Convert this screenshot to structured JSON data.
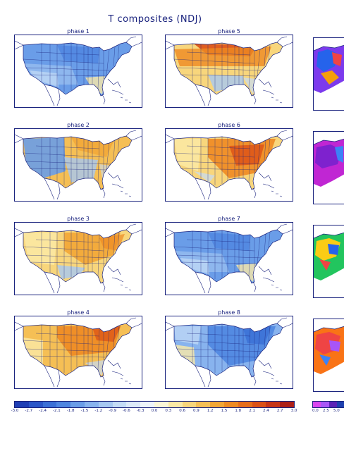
{
  "title": "T composites (NDJ)",
  "panels": [
    {
      "label": "phase 1",
      "pattern": "cold-north"
    },
    {
      "label": "phase 2",
      "pattern": "cold-west"
    },
    {
      "label": "phase 3",
      "pattern": "warm-east"
    },
    {
      "label": "phase 4",
      "pattern": "warm-all"
    },
    {
      "label": "phase 5",
      "pattern": "warm-north"
    },
    {
      "label": "phase 6",
      "pattern": "warm-east-strong"
    },
    {
      "label": "phase 7",
      "pattern": "cold-north"
    },
    {
      "label": "phase 8",
      "pattern": "cold-east"
    }
  ],
  "colorbar": {
    "ticks": [
      "-3.0",
      "-2.7",
      "-2.4",
      "-2.1",
      "-1.8",
      "-1.5",
      "-1.2",
      "-0.9",
      "-0.6",
      "-0.3",
      "0.0",
      "0.3",
      "0.6",
      "0.9",
      "1.2",
      "1.5",
      "1.8",
      "2.1",
      "2.4",
      "2.7",
      "3.0"
    ],
    "colors": [
      "#1f3fb5",
      "#2a56c8",
      "#3a6fd6",
      "#4f86e0",
      "#6a9de8",
      "#88b3ee",
      "#a6c8f2",
      "#c4dcf6",
      "#dceaf8",
      "#eef5fa",
      "#fbf7d8",
      "#fbeaa6",
      "#f8d67c",
      "#f5bf55",
      "#f2a635",
      "#ee8a22",
      "#e76d1a",
      "#dc5016",
      "#c83516",
      "#ad1f18"
    ]
  },
  "colorbar2": {
    "ticks": [
      "0.0",
      "2.5",
      "5.0"
    ],
    "colors": [
      "#d946ef",
      "#a855f7",
      "#5b21b6",
      "#1e40af"
    ]
  }
}
